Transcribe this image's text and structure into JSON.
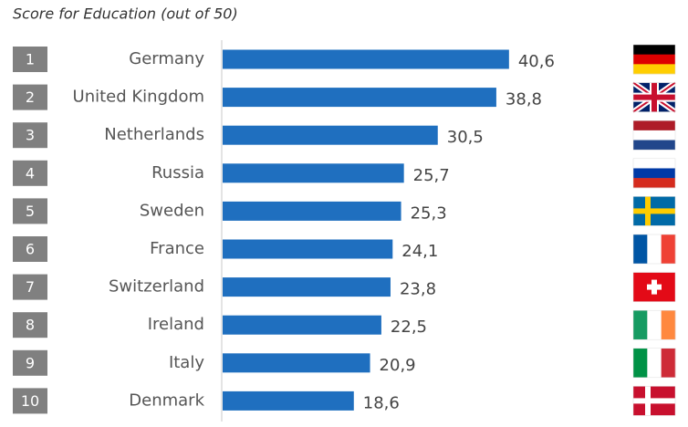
{
  "chart_data": {
    "type": "bar",
    "title": "Score for Education (out of 50)",
    "ranks": [
      1,
      2,
      3,
      4,
      5,
      6,
      7,
      8,
      9,
      10
    ],
    "categories": [
      "Germany",
      "United Kingdom",
      "Netherlands",
      "Russia",
      "Sweden",
      "France",
      "Switzerland",
      "Ireland",
      "Italy",
      "Denmark"
    ],
    "values": [
      40.6,
      38.8,
      30.5,
      25.7,
      25.3,
      24.1,
      23.8,
      22.5,
      20.9,
      18.6
    ],
    "value_labels": [
      "40,6",
      "38,8",
      "30,5",
      "25,7",
      "25,3",
      "24,1",
      "23,8",
      "22,5",
      "20,9",
      "18,6"
    ],
    "color": "#1f6fbf"
  }
}
